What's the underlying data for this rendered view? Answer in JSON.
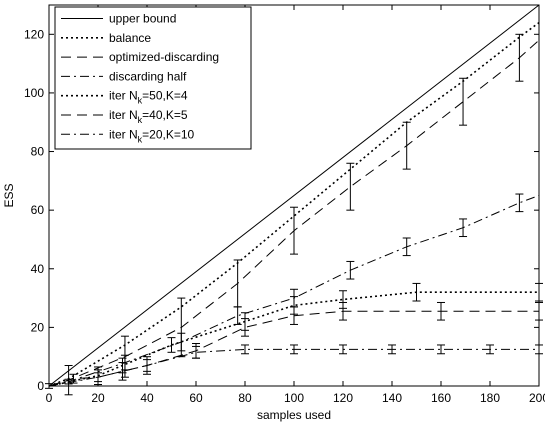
{
  "chart_data": {
    "type": "line",
    "title": "",
    "xlabel": "samples used",
    "ylabel": "ESS",
    "xlim": [
      0,
      200
    ],
    "ylim": [
      0,
      130
    ],
    "xticks": [
      0,
      20,
      40,
      60,
      80,
      100,
      120,
      140,
      160,
      180,
      200
    ],
    "yticks": [
      0,
      20,
      40,
      60,
      80,
      100,
      120
    ],
    "grid": false,
    "legend_position": "top-left",
    "series": [
      {
        "name": "upper bound",
        "style": "solid",
        "x": [
          0,
          200
        ],
        "y": [
          0,
          130
        ],
        "err": []
      },
      {
        "name": "balance",
        "style": "dotted",
        "x": [
          0,
          8,
          31,
          54,
          77,
          100,
          123,
          146,
          169,
          192,
          200
        ],
        "y": [
          0,
          2.5,
          14,
          27,
          42,
          58,
          74,
          90,
          104,
          119,
          124
        ],
        "err": []
      },
      {
        "name": "optimized-discarding",
        "style": "dashed",
        "x": [
          0,
          8,
          31,
          54,
          77,
          100,
          123,
          146,
          169,
          192,
          200
        ],
        "y": [
          0,
          2,
          10,
          20,
          35,
          53,
          68,
          82,
          97,
          112,
          118
        ],
        "err": [
          0.8,
          5,
          7,
          10,
          8,
          8,
          8,
          8,
          8,
          8,
          0
        ]
      },
      {
        "name": "discarding half",
        "style": "dashdot",
        "x": [
          0,
          8,
          31,
          54,
          77,
          100,
          123,
          146,
          169,
          192,
          200
        ],
        "y": [
          0,
          1.5,
          8,
          15,
          24,
          30,
          39.5,
          47.5,
          54,
          62.5,
          65
        ],
        "err": [
          0,
          0.8,
          2.5,
          3,
          3,
          3,
          3,
          3,
          3,
          3,
          0
        ]
      },
      {
        "name": "iter Nₖ=50,K=4",
        "style": "dotted",
        "x": [
          0,
          20,
          30,
          50,
          80,
          100,
          120,
          150,
          200
        ],
        "y": [
          0,
          3.5,
          7,
          14,
          22,
          27.5,
          29.5,
          32,
          32
        ],
        "err": [
          0,
          3,
          2.5,
          2.5,
          3,
          3,
          3,
          3,
          3
        ]
      },
      {
        "name": "iter Nₖ=40,K=5",
        "style": "dashed",
        "x": [
          0,
          10,
          20,
          30,
          40,
          60,
          80,
          100,
          120,
          160,
          200
        ],
        "y": [
          0,
          2.5,
          3,
          5,
          7,
          12,
          20,
          24,
          25.5,
          25.5,
          25.5
        ],
        "err": [
          0,
          1.5,
          2.5,
          3,
          3,
          2.5,
          3,
          3,
          3,
          3,
          3
        ]
      },
      {
        "name": "iter Nₖ=20,K=10",
        "style": "dashdot",
        "x": [
          0,
          20,
          40,
          60,
          80,
          100,
          120,
          140,
          160,
          180,
          200
        ],
        "y": [
          0,
          3,
          7,
          11.5,
          12.5,
          12.5,
          12.5,
          12.5,
          12.5,
          12.5,
          12.5
        ],
        "err": [
          0,
          1.5,
          2,
          2,
          1.5,
          1.5,
          1.5,
          1.5,
          1.5,
          1.5,
          1.5
        ]
      }
    ],
    "legend_labels": [
      {
        "main": "upper bound",
        "sub": "",
        "rest": ""
      },
      {
        "main": "balance",
        "sub": "",
        "rest": ""
      },
      {
        "main": "optimized-discarding",
        "sub": "",
        "rest": ""
      },
      {
        "main": "discarding half",
        "sub": "",
        "rest": ""
      },
      {
        "main": "iter N",
        "sub": "k",
        "rest": "=50,K=4"
      },
      {
        "main": "iter N",
        "sub": "k",
        "rest": "=40,K=5"
      },
      {
        "main": "iter N",
        "sub": "k",
        "rest": "=20,K=10"
      }
    ]
  }
}
